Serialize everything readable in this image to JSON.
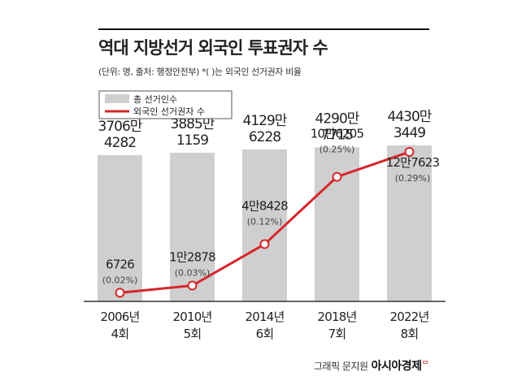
{
  "header": {
    "title": "역대 지방선거 외국인 투표권자 수",
    "subtitle": "(단위: 명, 출처: 행정안전부) *( )는 외국인 선거권자 비율"
  },
  "footer": {
    "credit": "그래픽 문지원",
    "brand": "아시아경제",
    "brand_mark": "ᄆ"
  },
  "colors": {
    "bar": "#cfcfcf",
    "line": "#d7262b",
    "text": "#222222",
    "axis": "#333333"
  },
  "chart_data": {
    "type": "bar",
    "categories": [
      "2006년\n4회",
      "2010년\n5회",
      "2014년\n6회",
      "2018년\n7회",
      "2022년\n8회"
    ],
    "legend": [
      "총 선거인수",
      "외국인 선거권자 수"
    ],
    "series": [
      {
        "name": "총 선거인수",
        "type": "bar",
        "values": [
          37064282,
          38851159,
          41296228,
          42907715,
          44303449
        ],
        "labels": [
          [
            "3706만",
            "4282"
          ],
          [
            "3885만",
            "1159"
          ],
          [
            "4129만",
            "6228"
          ],
          [
            "4290만",
            "7715"
          ],
          [
            "4430만",
            "3449"
          ]
        ]
      },
      {
        "name": "외국인 선거권자 수",
        "type": "line",
        "values": [
          6726,
          12878,
          48428,
          106205,
          127623
        ],
        "labels": [
          "6726",
          "1만2878",
          "4만8428",
          "10만6205",
          "12만7623"
        ],
        "ratios": [
          "(0.02%)",
          "(0.03%)",
          "(0.12%)",
          "(0.25%)",
          "(0.29%)"
        ]
      }
    ]
  }
}
